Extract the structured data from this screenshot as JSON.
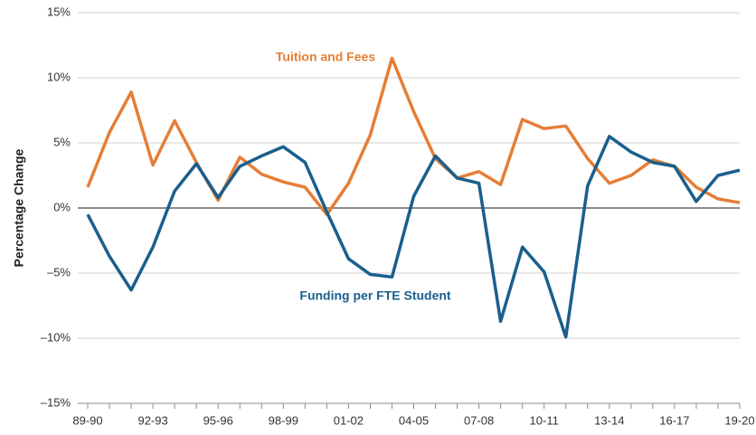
{
  "chart_data": {
    "type": "line",
    "y_label": "Percentage Change",
    "categories": [
      "89-90",
      null,
      null,
      "92-93",
      null,
      null,
      "95-96",
      null,
      null,
      "98-99",
      null,
      null,
      "01-02",
      null,
      null,
      "04-05",
      null,
      null,
      "07-08",
      null,
      null,
      "10-11",
      null,
      null,
      "13-14",
      null,
      null,
      "16-17",
      null,
      null,
      "19-20"
    ],
    "series": [
      {
        "name": "Tuition and Fees",
        "color": "#e57e36",
        "values": [
          1.6,
          5.8,
          8.9,
          3.3,
          6.7,
          3.5,
          0.6,
          3.9,
          2.6,
          2.0,
          1.6,
          -0.5,
          1.9,
          5.6,
          11.5,
          7.4,
          3.8,
          2.3,
          2.8,
          1.8,
          6.8,
          6.1,
          6.3,
          3.8,
          1.9,
          2.5,
          3.7,
          3.2,
          1.6,
          0.7,
          0.4
        ]
      },
      {
        "name": "Funding per FTE Student",
        "color": "#1a5f8c",
        "values": [
          -0.5,
          -3.7,
          -6.3,
          -3.0,
          1.3,
          3.4,
          0.8,
          3.2,
          4.0,
          4.7,
          3.5,
          -0.3,
          -3.9,
          -5.1,
          -5.3,
          0.9,
          4.0,
          2.3,
          1.9,
          -8.7,
          -3.0,
          -4.9,
          -9.9,
          1.7,
          5.5,
          4.3,
          3.5,
          3.2,
          0.5,
          2.5,
          2.9
        ]
      }
    ],
    "ylim": [
      -15,
      15
    ],
    "yticks": [
      {
        "value": -15,
        "label": "–15%"
      },
      {
        "value": -10,
        "label": "–10%"
      },
      {
        "value": -5,
        "label": "–5%"
      },
      {
        "value": 0,
        "label": "0%"
      },
      {
        "value": 5,
        "label": "5%"
      },
      {
        "value": 10,
        "label": "10%"
      },
      {
        "value": 15,
        "label": "15%"
      }
    ],
    "grid": true
  }
}
